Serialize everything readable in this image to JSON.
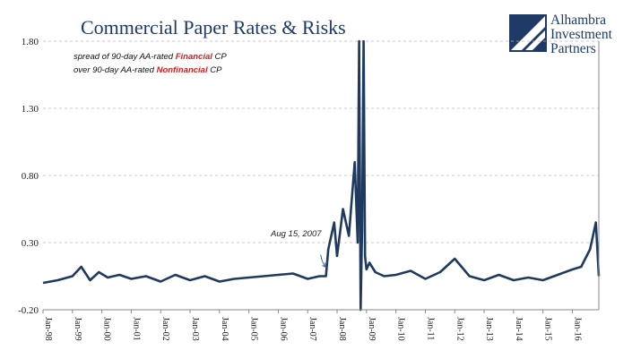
{
  "chart_data": {
    "type": "line",
    "title": "Commercial Paper Rates & Risks",
    "legend": {
      "line1_prefix": "spread of 90-day AA-rated ",
      "line1_highlight": "Financial",
      "line1_suffix": " CP",
      "line2_prefix": "over 90-day AA-rated ",
      "line2_highlight": "Nonfinancial",
      "line2_suffix": " CP",
      "placement": "top-left"
    },
    "ylim": [
      -0.2,
      1.8
    ],
    "yticks": [
      "1.80",
      "1.30",
      "0.80",
      "0.30",
      "-0.20"
    ],
    "ytick_values": [
      1.8,
      1.3,
      0.8,
      0.3,
      -0.2
    ],
    "xlim": [
      1998.0,
      2016.9
    ],
    "xtick_labels": [
      "Jan-98",
      "Jan-99",
      "Jan-00",
      "Jan-01",
      "Jan-02",
      "Jan-03",
      "Jan-04",
      "Jan-05",
      "Jan-06",
      "Jan-07",
      "Jan-08",
      "Jan-09",
      "Jan-10",
      "Jan-11",
      "Jan-12",
      "Jan-13",
      "Jan-14",
      "Jan-15",
      "Jan-16"
    ],
    "grid": true,
    "series_color": "#1f3a5f",
    "annotation": {
      "text": "Aug 15, 2007",
      "x": 2007.62,
      "y": 0.05
    },
    "series": [
      {
        "x": [
          1998.0,
          1998.5,
          1999.0,
          1999.3,
          1999.6,
          1999.9,
          2000.2,
          2000.6,
          2001.0,
          2001.5,
          2002.0,
          2002.5,
          2003.0,
          2003.5,
          2004.0,
          2004.5,
          2005.0,
          2005.5,
          2006.0,
          2006.5,
          2007.0,
          2007.4,
          2007.62,
          2007.7,
          2007.9,
          2008.0,
          2008.2,
          2008.4,
          2008.6,
          2008.7,
          2008.75,
          2008.8,
          2008.85,
          2008.9,
          2008.95,
          2009.0,
          2009.1,
          2009.3,
          2009.6,
          2010.0,
          2010.5,
          2011.0,
          2011.5,
          2012.0,
          2012.5,
          2013.0,
          2013.5,
          2014.0,
          2014.5,
          2015.0,
          2015.5,
          2016.0,
          2016.3,
          2016.6,
          2016.8,
          2016.9
        ],
        "values": [
          0.0,
          0.02,
          0.05,
          0.12,
          0.02,
          0.08,
          0.04,
          0.06,
          0.03,
          0.05,
          0.01,
          0.06,
          0.02,
          0.05,
          0.01,
          0.03,
          0.04,
          0.05,
          0.06,
          0.07,
          0.03,
          0.05,
          0.05,
          0.25,
          0.45,
          0.2,
          0.55,
          0.35,
          0.9,
          0.3,
          1.8,
          -0.2,
          0.4,
          1.8,
          0.2,
          0.1,
          0.15,
          0.08,
          0.05,
          0.06,
          0.09,
          0.03,
          0.08,
          0.18,
          0.05,
          0.02,
          0.06,
          0.02,
          0.04,
          0.02,
          0.06,
          0.1,
          0.12,
          0.25,
          0.45,
          0.05
        ]
      }
    ]
  },
  "logo": {
    "line1": "Alhambra",
    "line2": "Investment",
    "line3": "Partners",
    "color": "#1f3a66"
  }
}
